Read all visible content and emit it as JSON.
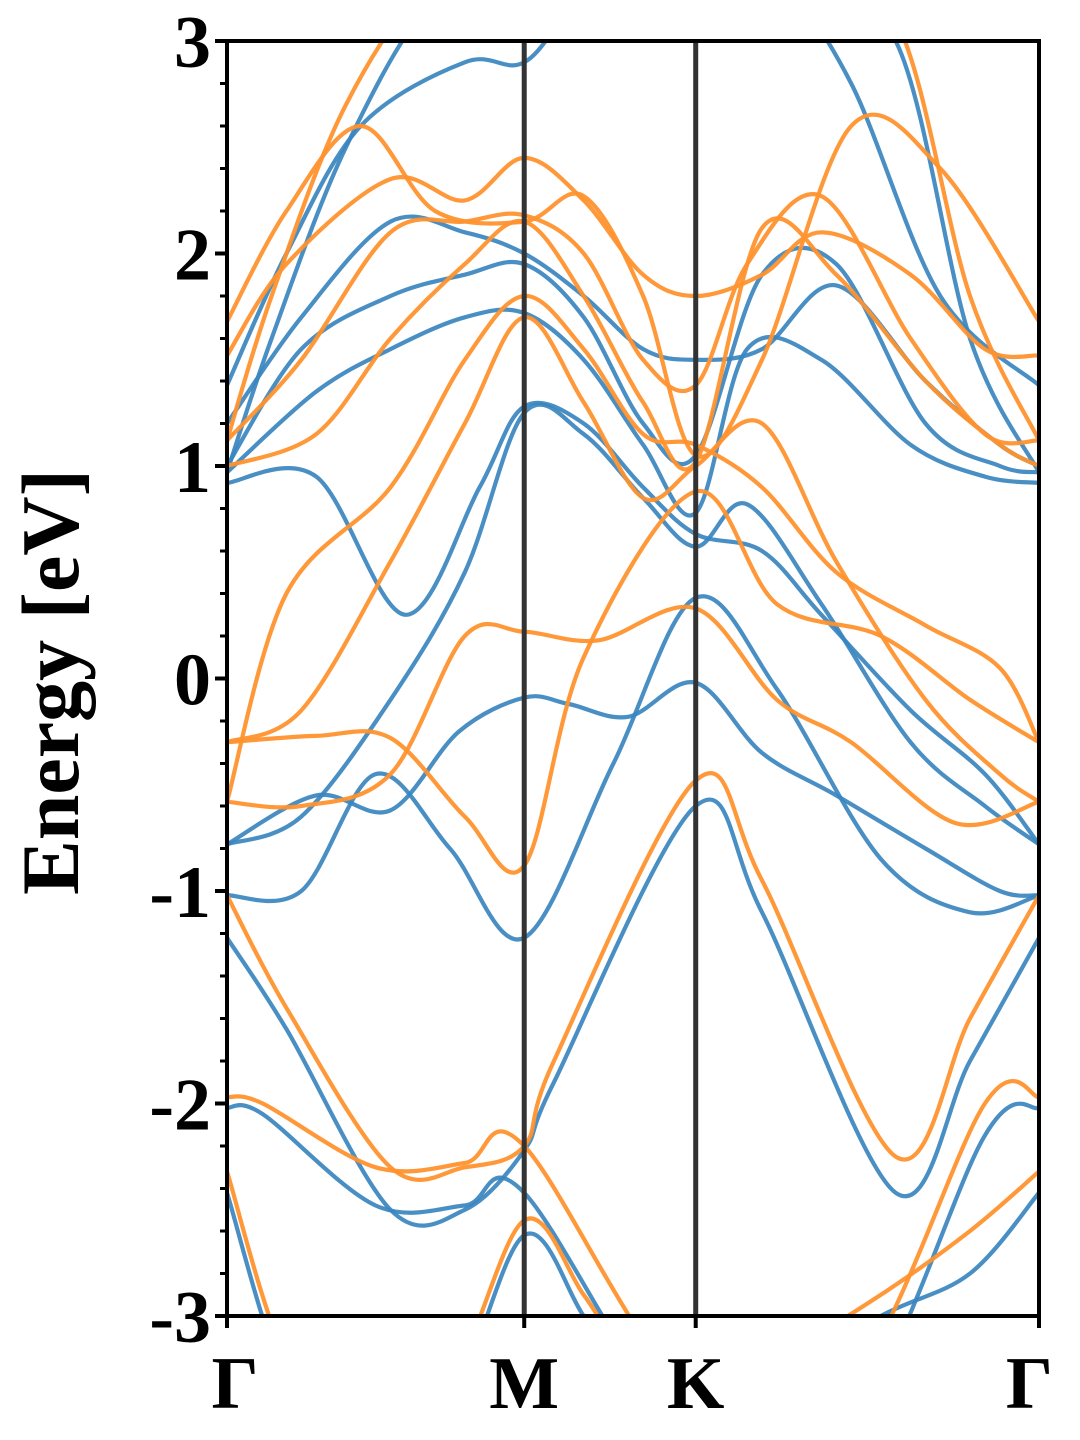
{
  "chart_data": {
    "type": "line",
    "title": "",
    "xlabel": "",
    "ylabel": "Energy [eV]",
    "ylim": [
      -3,
      3
    ],
    "y_ticks": [
      -3,
      -2,
      -1,
      0,
      1,
      2,
      3
    ],
    "y_tick_labels": [
      "-3",
      "-2",
      "-1",
      "0",
      "1",
      "2",
      "3"
    ],
    "x_kpoints": [
      "Γ",
      "M",
      "K",
      "Γ"
    ],
    "x_positions": [
      0,
      1,
      1.577,
      2.732
    ],
    "high_symmetry_line_color": "#333333",
    "series_colors": {
      "blue": "#3a85bf",
      "orange": "#ff922e"
    },
    "series": [
      {
        "color": "blue",
        "x": [
          0,
          0.2,
          0.45,
          0.75,
          1.0,
          1.2,
          1.35,
          1.577,
          1.85,
          2.2,
          2.5,
          2.732
        ],
        "y": [
          -2.42,
          -3.3,
          -3.6,
          -3.4,
          -2.62,
          -3.0,
          -3.3,
          -3.5,
          -3.3,
          -3.0,
          -2.8,
          -2.42
        ]
      },
      {
        "color": "blue",
        "x": [
          0,
          0.12,
          0.5,
          0.8,
          1.0,
          1.577,
          2.1,
          2.55,
          2.732
        ],
        "y": [
          -2.02,
          -2.05,
          -2.48,
          -2.48,
          -2.42,
          -3.6,
          -3.5,
          -2.15,
          -2.02
        ]
      },
      {
        "color": "blue",
        "x": [
          0,
          0.2,
          0.55,
          0.8,
          1.0,
          1.1,
          1.577,
          1.8,
          2.25,
          2.5,
          2.732
        ],
        "y": [
          -1.22,
          -1.65,
          -2.5,
          -2.5,
          -2.22,
          -1.9,
          -0.6,
          -1.1,
          -2.42,
          -1.8,
          -1.22
        ]
      },
      {
        "color": "blue",
        "x": [
          0,
          0.25,
          0.5,
          0.75,
          1.0,
          1.3,
          1.577,
          1.85,
          2.2,
          2.5,
          2.732
        ],
        "y": [
          -1.02,
          -1.0,
          -0.45,
          -0.8,
          -1.22,
          -0.4,
          0.38,
          -0.05,
          -0.85,
          -1.1,
          -1.02
        ]
      },
      {
        "color": "blue",
        "x": [
          0,
          0.3,
          0.55,
          0.78,
          1.0,
          1.15,
          1.35,
          1.577,
          1.8,
          2.05,
          2.35,
          2.6,
          2.732
        ],
        "y": [
          -0.78,
          -0.55,
          -0.62,
          -0.25,
          -0.09,
          -0.12,
          -0.18,
          -0.02,
          -0.35,
          -0.55,
          -0.8,
          -1.0,
          -1.02
        ]
      },
      {
        "color": "blue",
        "x": [
          0,
          0.25,
          0.55,
          0.8,
          1.0,
          1.2,
          1.4,
          1.577,
          1.75,
          2.0,
          2.3,
          2.55,
          2.732
        ],
        "y": [
          -0.78,
          -0.65,
          -0.1,
          0.5,
          1.25,
          1.15,
          0.85,
          0.62,
          0.82,
          0.35,
          -0.3,
          -0.6,
          -0.78
        ]
      },
      {
        "color": "blue",
        "x": [
          0,
          0.3,
          0.6,
          0.85,
          1.0,
          1.2,
          1.4,
          1.577,
          1.8,
          2.0,
          2.3,
          2.55,
          2.732
        ],
        "y": [
          0.92,
          0.95,
          0.3,
          0.9,
          1.28,
          1.2,
          0.9,
          0.68,
          0.6,
          0.3,
          -0.15,
          -0.45,
          -0.78
        ]
      },
      {
        "color": "blue",
        "x": [
          0,
          0.3,
          0.55,
          0.8,
          1.0,
          1.2,
          1.4,
          1.577,
          1.75,
          2.0,
          2.3,
          2.55,
          2.732
        ],
        "y": [
          0.97,
          1.35,
          1.55,
          1.7,
          1.72,
          1.5,
          1.1,
          0.78,
          1.55,
          1.5,
          1.1,
          0.95,
          0.92
        ]
      },
      {
        "color": "blue",
        "x": [
          0,
          0.25,
          0.55,
          0.8,
          1.0,
          1.2,
          1.4,
          1.577,
          1.8,
          2.05,
          2.35,
          2.6,
          2.732
        ],
        "y": [
          1.0,
          1.55,
          1.8,
          1.9,
          1.95,
          1.7,
          1.2,
          1.05,
          1.9,
          1.95,
          1.2,
          1.0,
          0.97
        ]
      },
      {
        "color": "blue",
        "x": [
          0,
          0.25,
          0.55,
          0.8,
          1.0,
          1.2,
          1.4,
          1.577,
          1.8,
          2.05,
          2.35,
          2.6,
          2.732
        ],
        "y": [
          1.2,
          1.7,
          2.15,
          2.1,
          2.0,
          1.8,
          1.55,
          1.5,
          1.55,
          1.85,
          1.4,
          1.1,
          1.0
        ]
      },
      {
        "color": "blue",
        "x": [
          0,
          0.2,
          0.45,
          0.8,
          1.0,
          1.2,
          1.577,
          1.85,
          2.1,
          2.4,
          2.732
        ],
        "y": [
          1.38,
          2.0,
          2.6,
          2.9,
          2.9,
          3.2,
          3.5,
          3.3,
          2.8,
          1.8,
          1.38
        ]
      },
      {
        "color": "blue",
        "x": [
          0,
          0.15,
          0.4,
          0.7,
          1.0,
          1.3,
          1.577,
          1.9,
          2.25,
          2.5,
          2.732
        ],
        "y": [
          0.97,
          1.6,
          2.5,
          3.2,
          3.3,
          3.4,
          3.5,
          3.3,
          3.0,
          1.6,
          0.97
        ]
      },
      {
        "color": "orange",
        "x": [
          0,
          0.2,
          0.45,
          0.75,
          1.0,
          1.2,
          1.35,
          1.577,
          1.85,
          2.2,
          2.5,
          2.732
        ],
        "y": [
          -2.32,
          -3.2,
          -3.5,
          -3.3,
          -2.55,
          -2.9,
          -3.2,
          -3.4,
          -3.2,
          -2.9,
          -2.6,
          -2.32
        ]
      },
      {
        "color": "orange",
        "x": [
          0,
          0.12,
          0.5,
          0.8,
          1.0,
          1.577,
          2.1,
          2.55,
          2.732
        ],
        "y": [
          -1.97,
          -2.0,
          -2.3,
          -2.28,
          -2.2,
          -3.4,
          -3.3,
          -2.0,
          -1.97
        ]
      },
      {
        "color": "orange",
        "x": [
          0,
          0.2,
          0.55,
          0.8,
          1.0,
          1.1,
          1.577,
          1.8,
          2.25,
          2.5,
          2.732
        ],
        "y": [
          -1.02,
          -1.55,
          -2.3,
          -2.3,
          -2.2,
          -1.8,
          -0.48,
          -0.95,
          -2.25,
          -1.6,
          -1.02
        ]
      },
      {
        "color": "orange",
        "x": [
          0,
          0.3,
          0.55,
          0.8,
          1.0,
          1.2,
          1.577,
          1.85,
          2.2,
          2.5,
          2.732
        ],
        "y": [
          -0.3,
          -0.27,
          -0.28,
          -0.65,
          -0.88,
          0.1,
          0.88,
          0.35,
          0.2,
          -0.1,
          -0.3
        ]
      },
      {
        "color": "orange",
        "x": [
          0,
          0.25,
          0.55,
          0.8,
          1.0,
          1.25,
          1.577,
          1.85,
          2.1,
          2.45,
          2.732
        ],
        "y": [
          -0.58,
          -0.6,
          -0.45,
          0.2,
          0.22,
          0.18,
          0.33,
          -0.1,
          -0.3,
          -0.68,
          -0.58
        ]
      },
      {
        "color": "orange",
        "x": [
          0,
          0.25,
          0.55,
          0.8,
          1.0,
          1.2,
          1.4,
          1.577,
          1.8,
          2.05,
          2.35,
          2.6,
          2.732
        ],
        "y": [
          -0.3,
          -0.15,
          0.55,
          1.2,
          1.7,
          1.3,
          0.85,
          1.0,
          1.2,
          0.55,
          -0.1,
          -0.45,
          -0.58
        ]
      },
      {
        "color": "orange",
        "x": [
          0,
          0.2,
          0.55,
          0.8,
          1.0,
          1.2,
          1.4,
          1.577,
          1.8,
          2.05,
          2.35,
          2.6,
          2.732
        ],
        "y": [
          -0.58,
          0.4,
          0.9,
          1.5,
          1.8,
          1.55,
          1.15,
          1.1,
          0.9,
          0.5,
          0.25,
          0.05,
          -0.3
        ]
      },
      {
        "color": "orange",
        "x": [
          0,
          0.3,
          0.55,
          0.8,
          1.0,
          1.2,
          1.4,
          1.577,
          1.8,
          2.05,
          2.35,
          2.6,
          2.732
        ],
        "y": [
          1.0,
          1.15,
          1.6,
          1.95,
          2.15,
          1.8,
          1.3,
          1.02,
          2.12,
          1.9,
          1.4,
          1.1,
          1.0
        ]
      },
      {
        "color": "orange",
        "x": [
          0,
          0.25,
          0.55,
          0.8,
          1.0,
          1.2,
          1.4,
          1.577,
          1.75,
          2.0,
          2.3,
          2.55,
          2.732
        ],
        "y": [
          1.12,
          1.5,
          2.1,
          2.15,
          2.18,
          2.0,
          1.5,
          1.38,
          1.95,
          2.27,
          1.6,
          1.15,
          1.12
        ]
      },
      {
        "color": "orange",
        "x": [
          0,
          0.2,
          0.55,
          0.8,
          1.0,
          1.2,
          1.4,
          1.577,
          1.8,
          2.0,
          2.3,
          2.55,
          2.732
        ],
        "y": [
          1.52,
          1.95,
          2.35,
          2.25,
          2.45,
          2.25,
          1.9,
          1.8,
          1.9,
          2.1,
          1.9,
          1.55,
          1.52
        ]
      },
      {
        "color": "orange",
        "x": [
          0,
          0.2,
          0.45,
          0.7,
          1.0,
          1.2,
          1.4,
          1.577,
          1.8,
          2.1,
          2.4,
          2.732
        ],
        "y": [
          1.68,
          2.2,
          2.6,
          2.2,
          2.15,
          2.27,
          1.8,
          1.05,
          1.5,
          2.6,
          2.4,
          1.68
        ]
      },
      {
        "color": "orange",
        "x": [
          0,
          0.15,
          0.4,
          0.7,
          1.0,
          1.3,
          1.577,
          1.9,
          2.25,
          2.5,
          2.732
        ],
        "y": [
          1.12,
          1.8,
          2.7,
          3.3,
          3.4,
          3.5,
          3.5,
          3.4,
          3.1,
          1.8,
          1.12
        ]
      }
    ]
  }
}
